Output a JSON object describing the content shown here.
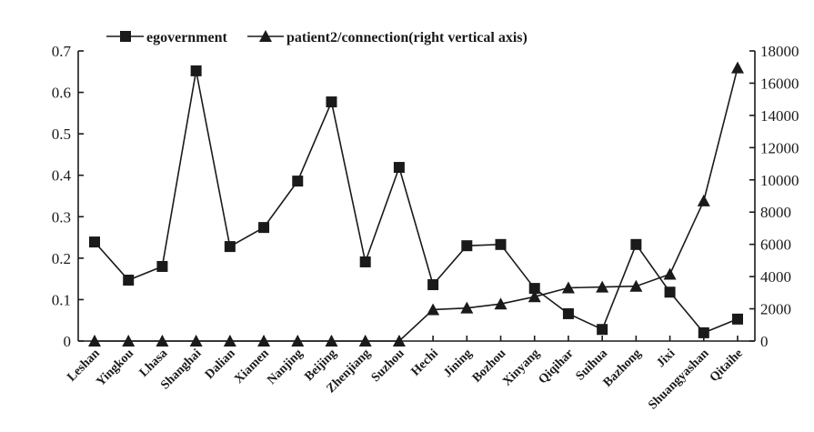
{
  "chart_data": {
    "type": "line",
    "title": "",
    "xlabel": "",
    "ylabel": "",
    "ylabel_right": "",
    "categories": [
      "Leshan",
      "Yingkou",
      "Lhasa",
      "Shanghai",
      "Dalian",
      "Xiamen",
      "Nanjing",
      "Beijing",
      "Zhenjiang",
      "Suzhou",
      "Hechi",
      "Jining",
      "Bozhou",
      "Xinyang",
      "Qiqihar",
      "Suihua",
      "Bazhong",
      "Jixi",
      "Shuangyashan",
      "Qitaihe"
    ],
    "series": [
      {
        "name": "egovernment",
        "axis": "left",
        "marker": "square",
        "values": [
          0.239,
          0.147,
          0.18,
          0.652,
          0.228,
          0.274,
          0.386,
          0.577,
          0.191,
          0.419,
          0.136,
          0.23,
          0.233,
          0.127,
          0.066,
          0.028,
          0.233,
          0.118,
          0.02,
          0.053
        ]
      },
      {
        "name": "patient2/connection(right vertical axis)",
        "axis": "right",
        "marker": "triangle",
        "values": [
          0,
          0,
          0,
          0,
          0,
          0,
          0,
          0,
          0,
          0,
          1950,
          2050,
          2300,
          2750,
          3300,
          3350,
          3400,
          4150,
          8700,
          16950
        ]
      }
    ],
    "ylim": [
      0,
      0.7
    ],
    "ylim_right": [
      0,
      18000
    ],
    "yticks": [
      "0",
      "0.1",
      "0.2",
      "0.3",
      "0.4",
      "0.5",
      "0.6",
      "0.7"
    ],
    "yticks_right": [
      "0",
      "2000",
      "4000",
      "6000",
      "8000",
      "10000",
      "12000",
      "14000",
      "16000",
      "18000"
    ],
    "legend_position": "top",
    "grid": false
  },
  "legend": {
    "item1": "egovernment",
    "item2": "patient2/connection(right vertical axis)"
  },
  "colors": {
    "ink": "#1a1a1a",
    "background": "#ffffff"
  }
}
